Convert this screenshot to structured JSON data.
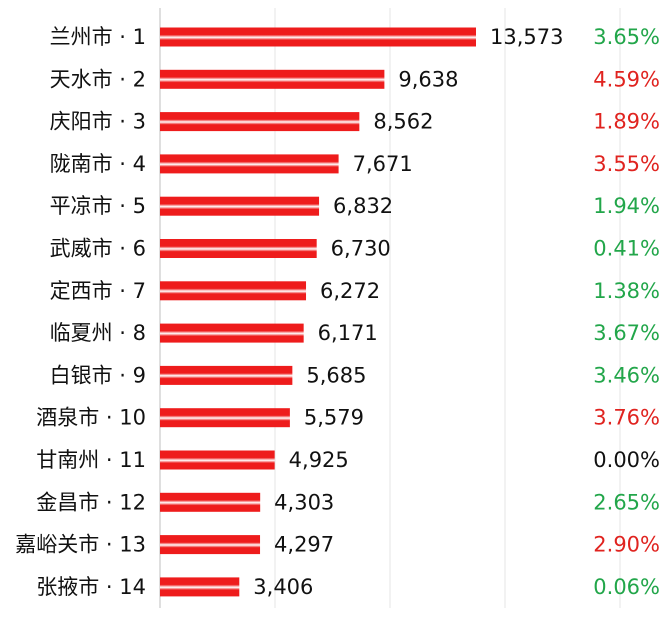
{
  "chart_data": {
    "type": "bar",
    "orientation": "horizontal",
    "categories": [
      "兰州市 · 1",
      "天水市 · 2",
      "庆阳市 · 3",
      "陇南市 · 4",
      "平凉市 · 5",
      "武威市 · 6",
      "定西市 · 7",
      "临夏州 · 8",
      "白银市 · 9",
      "酒泉市 · 10",
      "甘南州 · 11",
      "金昌市 · 12",
      "嘉峪关市 · 13",
      "张掖市 · 14"
    ],
    "values": [
      13573,
      9638,
      8562,
      7671,
      6832,
      6730,
      6272,
      6171,
      5685,
      5579,
      4925,
      4303,
      4297,
      3406
    ],
    "value_labels": [
      "13,573",
      "9,638",
      "8,562",
      "7,671",
      "6,832",
      "6,730",
      "6,272",
      "6,171",
      "5,685",
      "5,579",
      "4,925",
      "4,303",
      "4,297",
      "3,406"
    ],
    "growth_labels": [
      "3.65%",
      "4.59%",
      "1.89%",
      "3.55%",
      "1.94%",
      "0.41%",
      "1.38%",
      "3.67%",
      "3.46%",
      "3.76%",
      "0.00%",
      "2.65%",
      "2.90%",
      "0.06%"
    ],
    "growth_colors": [
      "#22a64a",
      "#e0231f",
      "#e0231f",
      "#e0231f",
      "#22a64a",
      "#22a64a",
      "#22a64a",
      "#22a64a",
      "#22a64a",
      "#e0231f",
      "#111111",
      "#22a64a",
      "#e0231f",
      "#22a64a"
    ],
    "xlim": [
      0,
      13573
    ],
    "grid": true,
    "title": "",
    "xlabel": "",
    "ylabel": "",
    "colors": {
      "bar": "#ee1c1c",
      "bar_highlight": "#ffffff",
      "axis": "#bfbfbf",
      "grid": "#e6e6e6"
    }
  }
}
